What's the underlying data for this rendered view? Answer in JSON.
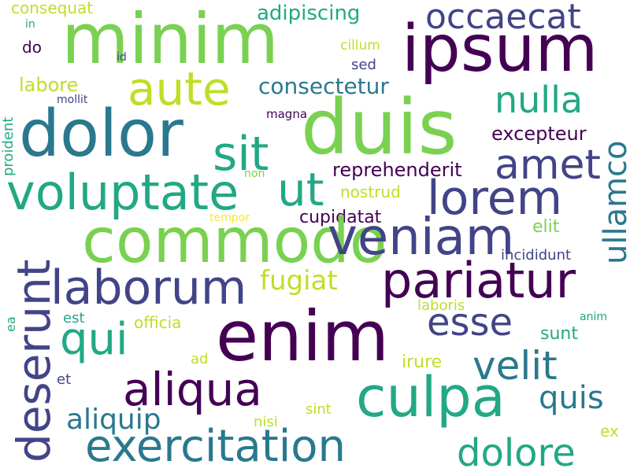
{
  "palette": {
    "dark_purple": "#440154",
    "indigo": "#414487",
    "blue": "#2a788e",
    "teal": "#22a884",
    "green": "#7ad151",
    "yellow_green": "#bddf26",
    "yellow": "#fde725"
  },
  "words": [
    {
      "text": "consequat"
    },
    {
      "text": "in"
    },
    {
      "text": "do"
    },
    {
      "text": "minim"
    },
    {
      "text": "adipiscing"
    },
    {
      "text": "occaecat"
    },
    {
      "text": "ipsum"
    },
    {
      "text": "cillum"
    },
    {
      "text": "sed"
    },
    {
      "text": "id"
    },
    {
      "text": "labore"
    },
    {
      "text": "aute"
    },
    {
      "text": "mollit"
    },
    {
      "text": "proident"
    },
    {
      "text": "consectetur"
    },
    {
      "text": "nulla"
    },
    {
      "text": "magna"
    },
    {
      "text": "dolor"
    },
    {
      "text": "duis"
    },
    {
      "text": "sit"
    },
    {
      "text": "excepteur"
    },
    {
      "text": "ullamco"
    },
    {
      "text": "amet"
    },
    {
      "text": "reprehenderit"
    },
    {
      "text": "non"
    },
    {
      "text": "voluptate"
    },
    {
      "text": "ut"
    },
    {
      "text": "lorem"
    },
    {
      "text": "nostrud"
    },
    {
      "text": "tempor"
    },
    {
      "text": "cupidatat"
    },
    {
      "text": "commodo"
    },
    {
      "text": "veniam"
    },
    {
      "text": "elit"
    },
    {
      "text": "deserunt"
    },
    {
      "text": "incididunt"
    },
    {
      "text": "laborum"
    },
    {
      "text": "fugiat"
    },
    {
      "text": "pariatur"
    },
    {
      "text": "ea"
    },
    {
      "text": "laboris"
    },
    {
      "text": "est"
    },
    {
      "text": "officia"
    },
    {
      "text": "esse"
    },
    {
      "text": "anim"
    },
    {
      "text": "qui"
    },
    {
      "text": "enim"
    },
    {
      "text": "sunt"
    },
    {
      "text": "ad"
    },
    {
      "text": "velit"
    },
    {
      "text": "irure"
    },
    {
      "text": "et"
    },
    {
      "text": "aliqua"
    },
    {
      "text": "culpa"
    },
    {
      "text": "quis"
    },
    {
      "text": "aliquip"
    },
    {
      "text": "sint"
    },
    {
      "text": "nisi"
    },
    {
      "text": "exercitation"
    },
    {
      "text": "dolore"
    },
    {
      "text": "ex"
    }
  ]
}
